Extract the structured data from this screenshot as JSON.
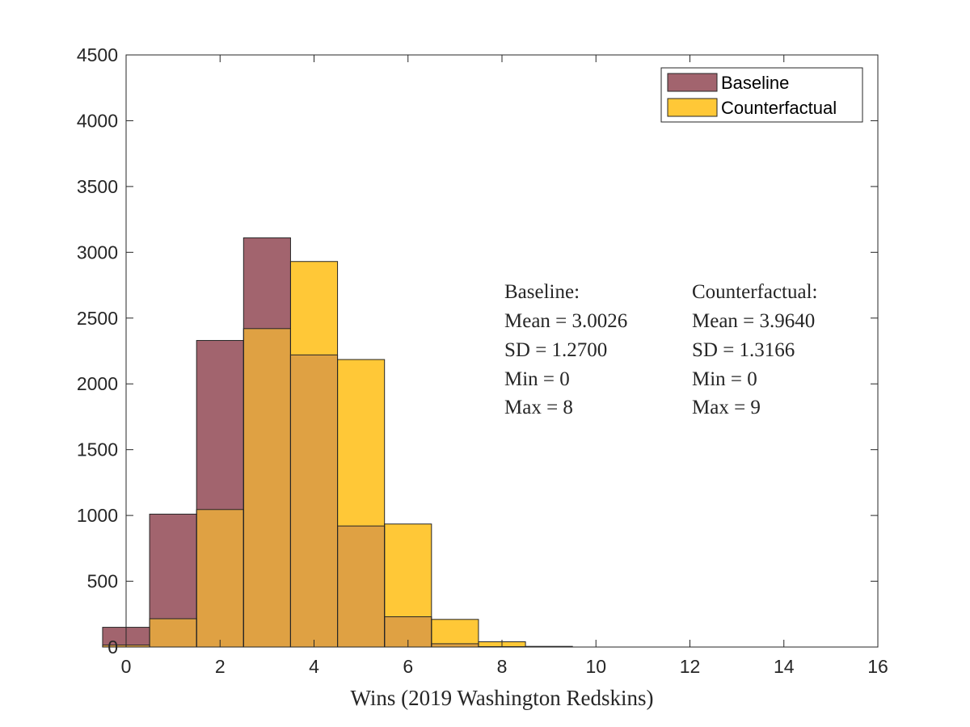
{
  "chart_data": {
    "type": "bar",
    "title": "",
    "xlabel": "Wins (2019 Washington Redskins)",
    "ylabel": "",
    "xlim": [
      0,
      16
    ],
    "ylim": [
      0,
      4500
    ],
    "bin_width": 1,
    "x_ticks": [
      "0",
      "2",
      "4",
      "6",
      "8",
      "10",
      "12",
      "14",
      "16"
    ],
    "y_ticks": [
      "0",
      "500",
      "1000",
      "1500",
      "2000",
      "2500",
      "3000",
      "3500",
      "4000",
      "4500"
    ],
    "bins": [
      0,
      1,
      2,
      3,
      4,
      5,
      6,
      7,
      8,
      9
    ],
    "series": [
      {
        "name": "Baseline",
        "color": "#a2646e",
        "values": [
          150,
          1010,
          2330,
          3110,
          2220,
          920,
          230,
          25,
          3,
          0
        ]
      },
      {
        "name": "Counterfactual",
        "color": "#ffc837",
        "values": [
          15,
          215,
          1045,
          2420,
          2930,
          2185,
          935,
          210,
          40,
          5
        ]
      }
    ],
    "overlap_color": "#dfa143",
    "grid": false,
    "legend_position": "top-right",
    "annotations": {
      "baseline": [
        "Baseline:",
        "Mean = 3.0026",
        "SD = 1.2700",
        "Min = 0",
        "Max = 8"
      ],
      "counterfactual": [
        "Counterfactual:",
        "Mean = 3.9640",
        "SD = 1.3166",
        "Min = 0",
        "Max = 9"
      ]
    }
  }
}
